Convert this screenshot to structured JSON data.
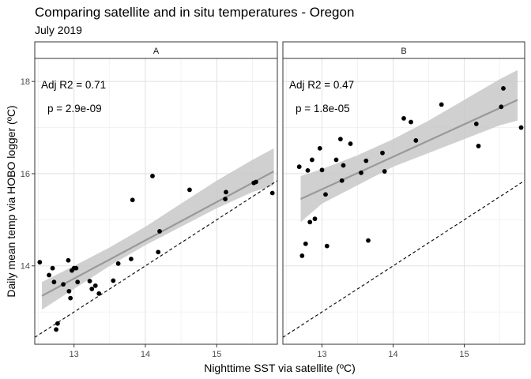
{
  "header": {
    "title": "Comparing satellite and in situ temperatures - Oregon",
    "subtitle": "July 2019"
  },
  "chart_data": {
    "type": "scatter",
    "xlabel": "Nighttime SST via satellite (ºC)",
    "ylabel": "Daily mean temp via HOBO logger (ºC)",
    "xlim": [
      12.45,
      15.85
    ],
    "ylim": [
      12.3,
      18.5
    ],
    "x_ticks": [
      13,
      14,
      15
    ],
    "y_ticks": [
      14,
      16,
      18
    ],
    "grid": true,
    "legend": "none",
    "identity_line": {
      "style": "dashed",
      "slope": 1,
      "intercept": 0
    },
    "colors": {
      "points": "#000000",
      "fit_line": "#999999",
      "confidence_band": "#c8c8c8",
      "strip_background": "#ffffff",
      "grid": "#ebebeb"
    },
    "panels": [
      {
        "strip_label": "A",
        "annotation_r2": "Adj R2 = 0.71",
        "annotation_p": "p = 2.9e-09",
        "fit": {
          "x": [
            12.55,
            15.8
          ],
          "y": [
            13.35,
            16.05
          ]
        },
        "band_upper": {
          "x": [
            12.55,
            13.0,
            13.5,
            14.0,
            14.5,
            15.0,
            15.5,
            15.8
          ],
          "y": [
            13.65,
            14.0,
            14.4,
            14.85,
            15.35,
            15.85,
            16.3,
            16.55
          ]
        },
        "band_lower": {
          "x": [
            12.55,
            13.0,
            13.5,
            14.0,
            14.5,
            15.0,
            15.5,
            15.8
          ],
          "y": [
            13.05,
            13.5,
            14.0,
            14.45,
            14.85,
            15.25,
            15.6,
            15.75
          ]
        },
        "points": {
          "x": [
            12.52,
            12.65,
            12.7,
            12.72,
            12.75,
            12.77,
            12.85,
            12.92,
            12.93,
            12.95,
            12.97,
            13.0,
            13.03,
            13.05,
            13.22,
            13.25,
            13.3,
            13.35,
            13.55,
            13.62,
            13.8,
            13.82,
            14.1,
            14.18,
            14.2,
            14.62,
            15.12,
            15.13,
            15.52,
            15.55,
            15.78
          ],
          "y": [
            14.08,
            13.8,
            13.95,
            13.65,
            12.62,
            12.75,
            13.6,
            14.12,
            13.45,
            13.3,
            13.9,
            13.95,
            13.95,
            13.65,
            13.67,
            13.5,
            13.57,
            13.4,
            13.68,
            14.05,
            14.15,
            15.43,
            15.95,
            14.3,
            14.75,
            15.65,
            15.45,
            15.6,
            15.8,
            15.82,
            15.58
          ]
        }
      },
      {
        "strip_label": "B",
        "annotation_r2": "Adj R2 = 0.47",
        "annotation_p": "p = 1.8e-05",
        "fit": {
          "x": [
            12.7,
            15.75
          ],
          "y": [
            15.45,
            17.6
          ]
        },
        "band_upper": {
          "x": [
            12.7,
            13.0,
            13.5,
            14.0,
            14.5,
            15.0,
            15.5,
            15.75
          ],
          "y": [
            15.95,
            16.1,
            16.4,
            16.75,
            17.15,
            17.6,
            18.05,
            18.25
          ]
        },
        "band_lower": {
          "x": [
            12.7,
            13.0,
            13.5,
            14.0,
            14.5,
            15.0,
            15.5,
            15.75
          ],
          "y": [
            14.95,
            15.35,
            15.75,
            16.15,
            16.45,
            16.75,
            17.05,
            17.15
          ]
        },
        "points": {
          "x": [
            12.68,
            12.72,
            12.77,
            12.8,
            12.83,
            12.86,
            12.9,
            12.97,
            13.0,
            13.05,
            13.07,
            13.2,
            13.26,
            13.28,
            13.3,
            13.4,
            13.55,
            13.62,
            13.65,
            13.85,
            13.88,
            14.15,
            14.25,
            14.32,
            14.68,
            15.17,
            15.2,
            15.52,
            15.55,
            15.8
          ],
          "y": [
            16.15,
            14.22,
            14.48,
            16.07,
            14.95,
            16.3,
            15.02,
            16.55,
            16.08,
            15.55,
            14.43,
            16.3,
            16.75,
            15.85,
            16.18,
            16.65,
            16.02,
            16.28,
            14.55,
            16.45,
            16.05,
            17.2,
            17.12,
            16.72,
            17.5,
            17.08,
            16.6,
            17.45,
            17.85,
            17.0
          ]
        }
      }
    ]
  }
}
